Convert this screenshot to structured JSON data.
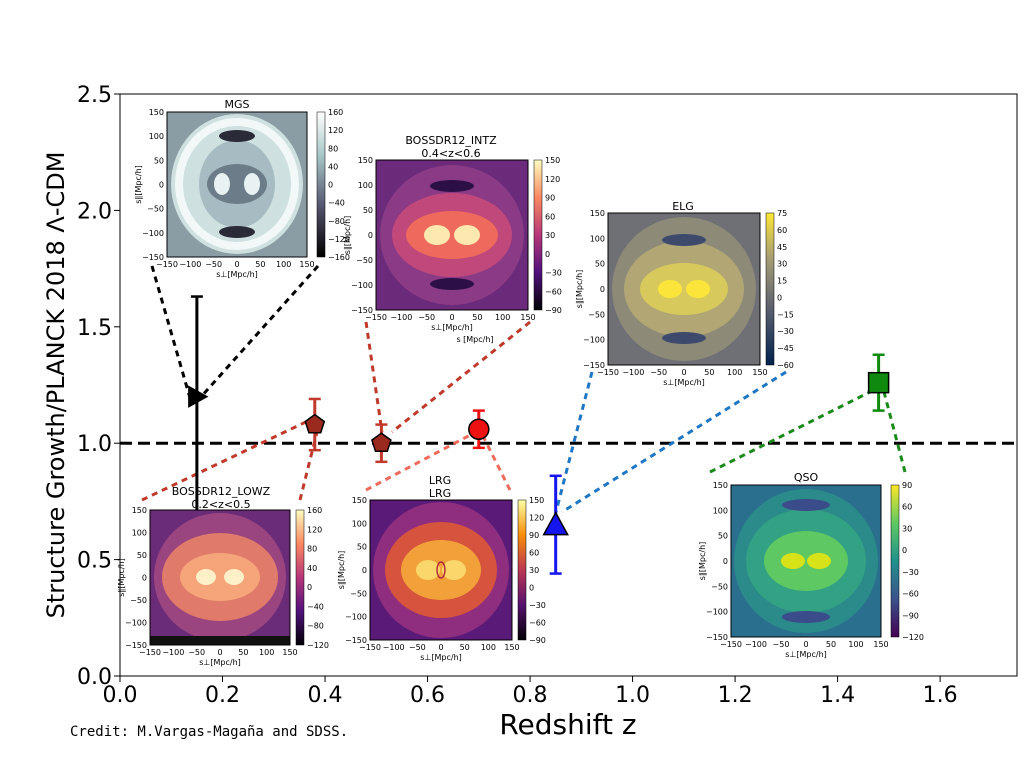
{
  "chart_data": {
    "type": "scatter",
    "xlabel": "Redshift z",
    "ylabel": "Structure Growth/PLANCK 2018 Λ-CDM",
    "xlim": [
      0.0,
      1.75
    ],
    "ylim": [
      0.0,
      2.5
    ],
    "x_ticks": [
      "0.0",
      "0.2",
      "0.4",
      "0.6",
      "0.8",
      "1.0",
      "1.2",
      "1.4",
      "1.6"
    ],
    "y_ticks": [
      "0.0",
      "0.5",
      "1.0",
      "1.5",
      "2.0",
      "2.5"
    ],
    "reference_line": {
      "y": 1.0,
      "style": "dashed",
      "color": "#000000"
    },
    "points": [
      {
        "name": "MGS",
        "x": 0.15,
        "y": 1.2,
        "err_low": 0.57,
        "err_high": 0.43,
        "marker": "right-triangle",
        "color": "#000000",
        "err_color": "#000000"
      },
      {
        "name": "BOSSDR12_LOWZ",
        "x": 0.38,
        "y": 1.08,
        "err_low": 0.11,
        "err_high": 0.11,
        "marker": "pentagon",
        "color": "#9b2a1e",
        "err_color": "#c0392b"
      },
      {
        "name": "BOSSDR12_INTZ",
        "x": 0.51,
        "y": 1.0,
        "err_low": 0.08,
        "err_high": 0.08,
        "marker": "pentagon",
        "color": "#9b2a1e",
        "err_color": "#c0392b"
      },
      {
        "name": "LRG",
        "x": 0.7,
        "y": 1.06,
        "err_low": 0.08,
        "err_high": 0.08,
        "marker": "circle",
        "color": "#ee1111",
        "err_color": "#ee1111"
      },
      {
        "name": "ELG",
        "x": 0.85,
        "y": 0.65,
        "err_low": 0.21,
        "err_high": 0.21,
        "marker": "up-triangle",
        "color": "#1515ee",
        "err_color": "#1515ee"
      },
      {
        "name": "QSO",
        "x": 1.48,
        "y": 1.26,
        "err_low": 0.12,
        "err_high": 0.12,
        "marker": "square",
        "color": "#0f8a0f",
        "err_color": "#0f8a0f"
      }
    ],
    "insets": [
      {
        "name": "mgs",
        "title": "MGS",
        "subtitle": "",
        "colorscale": "bone",
        "colorbar_ticks": [
          "160",
          "120",
          "80",
          "40",
          "0",
          "−40",
          "−80",
          "−120",
          "−160"
        ],
        "axis_ticks": [
          "150",
          "100",
          "50",
          "0",
          "−50",
          "−100",
          "−150"
        ],
        "x_ticks": [
          "−150",
          "−100",
          "−50",
          "0",
          "50",
          "100",
          "150"
        ],
        "xlabel": "s⊥[Mpc/h]",
        "ylabel": "s∥[Mpc/h]",
        "xlabel2": ""
      },
      {
        "name": "intz",
        "title": "BOSSDR12_INTZ",
        "subtitle": "0.4<z<0.6",
        "colorscale": "magma",
        "colorbar_ticks": [
          "150",
          "120",
          "90",
          "60",
          "30",
          "0",
          "−30",
          "−60",
          "−90"
        ],
        "axis_ticks": [
          "150",
          "100",
          "50",
          "0",
          "−50",
          "−100",
          "−150"
        ],
        "x_ticks": [
          "−150",
          "−100",
          "−50",
          "0",
          "50",
          "100",
          "150"
        ],
        "xlabel": "s⊥[Mpc/h]",
        "ylabel": "s∥[Mpc/h]",
        "xlabel2": "s [Mpc/h]"
      },
      {
        "name": "elg",
        "title": "ELG",
        "subtitle": "",
        "colorscale": "cividis",
        "colorbar_ticks": [
          "75",
          "60",
          "45",
          "30",
          "15",
          "0",
          "−15",
          "−30",
          "−45",
          "−60"
        ],
        "axis_ticks": [
          "150",
          "100",
          "50",
          "0",
          "−50",
          "−100",
          "−150"
        ],
        "x_ticks": [
          "−150",
          "−100",
          "−50",
          "0",
          "50",
          "100",
          "150"
        ],
        "xlabel": "s⊥[Mpc/h]",
        "ylabel": "s∥[Mpc/h]",
        "xlabel2": ""
      },
      {
        "name": "lowz",
        "title": "BOSSDR12_LOWZ",
        "subtitle": "0.2<z<0.5",
        "colorscale": "magma",
        "colorbar_ticks": [
          "160",
          "120",
          "80",
          "40",
          "0",
          "−40",
          "−80",
          "−120"
        ],
        "axis_ticks": [
          "150",
          "100",
          "50",
          "0",
          "−50",
          "−100",
          "−150"
        ],
        "x_ticks": [
          "−150",
          "−100",
          "−50",
          "0",
          "50",
          "100",
          "150"
        ],
        "xlabel": "s⊥[Mpc/h]",
        "ylabel": "s∥[Mpc/h]",
        "xlabel2": ""
      },
      {
        "name": "lrg",
        "title": "LRG",
        "subtitle": "",
        "title_above": "LRG",
        "colorscale": "inferno",
        "colorbar_ticks": [
          "150",
          "120",
          "90",
          "60",
          "30",
          "0",
          "−30",
          "−60",
          "−90"
        ],
        "axis_ticks": [
          "150",
          "100",
          "50",
          "0",
          "−50",
          "−100",
          "−150"
        ],
        "x_ticks": [
          "−150",
          "−100",
          "−50",
          "0",
          "50",
          "100",
          "150"
        ],
        "xlabel": "s⊥[Mpc/h]",
        "ylabel": "s∥[Mpc/h]",
        "xlabel2": ""
      },
      {
        "name": "qso",
        "title": "QSO",
        "subtitle": "",
        "colorscale": "viridis",
        "colorbar_ticks": [
          "90",
          "60",
          "30",
          "0",
          "−30",
          "−60",
          "−90",
          "−120"
        ],
        "axis_ticks": [
          "150",
          "100",
          "50",
          "0",
          "−50",
          "−100",
          "−150"
        ],
        "x_ticks": [
          "−150",
          "−100",
          "−50",
          "0",
          "50",
          "100",
          "150"
        ],
        "xlabel": "s⊥[Mpc/h]",
        "ylabel": "s∥[Mpc/h]",
        "xlabel2": ""
      }
    ]
  },
  "credit": "Credit: M.Vargas-Magaña and SDSS."
}
